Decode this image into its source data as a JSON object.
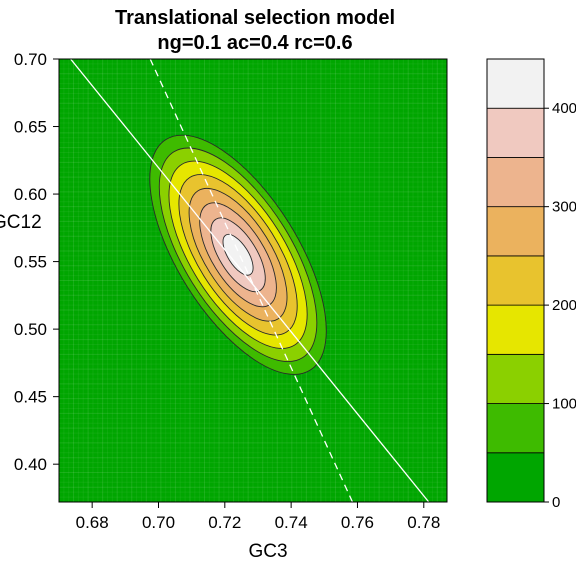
{
  "chart_data": {
    "type": "heatmap",
    "subtype": "filled-contour",
    "title": "Translational selection model",
    "subtitle": "ng=0.1 ac=0.4 rc=0.6",
    "xlabel": "GC3",
    "ylabel": "GC12",
    "xlim": [
      0.67,
      0.787
    ],
    "ylim": [
      0.372,
      0.7
    ],
    "x_ticks": [
      "0.68",
      "0.70",
      "0.72",
      "0.74",
      "0.76",
      "0.78"
    ],
    "y_ticks": [
      "0.40",
      "0.45",
      "0.50",
      "0.55",
      "0.60",
      "0.65",
      "0.70"
    ],
    "colorkey": {
      "range": [
        0,
        450
      ],
      "ticks": [
        "0",
        "100",
        "200",
        "300",
        "400"
      ],
      "levels": [
        0,
        50,
        100,
        150,
        200,
        250,
        300,
        350,
        400,
        450
      ],
      "colors": [
        "#00A600",
        "#3EBB00",
        "#8BD000",
        "#E6E600",
        "#E8C32E",
        "#EBB25E",
        "#EDB48E",
        "#F0C9C0",
        "#F2F2F2"
      ]
    },
    "density_peak": {
      "x": 0.724,
      "y": 0.555,
      "value": 450
    },
    "reference_lines": [
      {
        "style": "solid",
        "color": "#ffffff",
        "points": [
          [
            0.6735,
            0.7
          ],
          [
            0.7815,
            0.372
          ]
        ]
      },
      {
        "style": "dashed",
        "color": "#ffffff",
        "points": [
          [
            0.6975,
            0.7
          ],
          [
            0.7585,
            0.372
          ]
        ]
      }
    ]
  }
}
